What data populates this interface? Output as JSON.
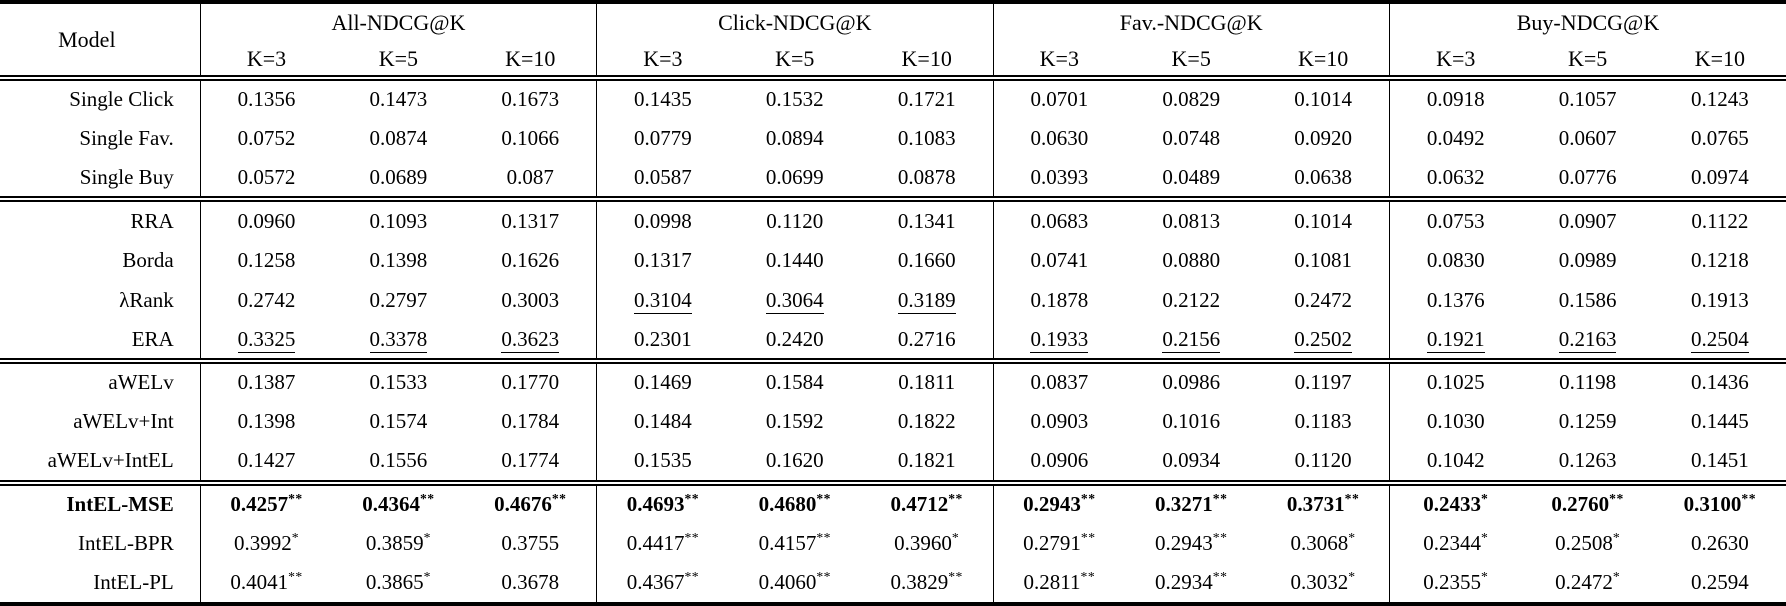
{
  "table": {
    "model_header": "Model",
    "groups": [
      {
        "label": "All-NDCG@K",
        "subcols": [
          "K=3",
          "K=5",
          "K=10"
        ]
      },
      {
        "label": "Click-NDCG@K",
        "subcols": [
          "K=3",
          "K=5",
          "K=10"
        ]
      },
      {
        "label": "Fav.-NDCG@K",
        "subcols": [
          "K=3",
          "K=5",
          "K=10"
        ]
      },
      {
        "label": "Buy-NDCG@K",
        "subcols": [
          "K=3",
          "K=5",
          "K=10"
        ]
      }
    ],
    "blocks": [
      {
        "rows": [
          {
            "model": "Single Click",
            "cells": [
              {
                "v": "0.1356"
              },
              {
                "v": "0.1473"
              },
              {
                "v": "0.1673"
              },
              {
                "v": "0.1435"
              },
              {
                "v": "0.1532"
              },
              {
                "v": "0.1721"
              },
              {
                "v": "0.0701"
              },
              {
                "v": "0.0829"
              },
              {
                "v": "0.1014"
              },
              {
                "v": "0.0918"
              },
              {
                "v": "0.1057"
              },
              {
                "v": "0.1243"
              }
            ]
          },
          {
            "model": "Single Fav.",
            "cells": [
              {
                "v": "0.0752"
              },
              {
                "v": "0.0874"
              },
              {
                "v": "0.1066"
              },
              {
                "v": "0.0779"
              },
              {
                "v": "0.0894"
              },
              {
                "v": "0.1083"
              },
              {
                "v": "0.0630"
              },
              {
                "v": "0.0748"
              },
              {
                "v": "0.0920"
              },
              {
                "v": "0.0492"
              },
              {
                "v": "0.0607"
              },
              {
                "v": "0.0765"
              }
            ]
          },
          {
            "model": "Single Buy",
            "cells": [
              {
                "v": "0.0572"
              },
              {
                "v": "0.0689"
              },
              {
                "v": "0.087"
              },
              {
                "v": "0.0587"
              },
              {
                "v": "0.0699"
              },
              {
                "v": "0.0878"
              },
              {
                "v": "0.0393"
              },
              {
                "v": "0.0489"
              },
              {
                "v": "0.0638"
              },
              {
                "v": "0.0632"
              },
              {
                "v": "0.0776"
              },
              {
                "v": "0.0974"
              }
            ]
          }
        ]
      },
      {
        "rows": [
          {
            "model": "RRA",
            "cells": [
              {
                "v": "0.0960"
              },
              {
                "v": "0.1093"
              },
              {
                "v": "0.1317"
              },
              {
                "v": "0.0998"
              },
              {
                "v": "0.1120"
              },
              {
                "v": "0.1341"
              },
              {
                "v": "0.0683"
              },
              {
                "v": "0.0813"
              },
              {
                "v": "0.1014"
              },
              {
                "v": "0.0753"
              },
              {
                "v": "0.0907"
              },
              {
                "v": "0.1122"
              }
            ]
          },
          {
            "model": "Borda",
            "cells": [
              {
                "v": "0.1258"
              },
              {
                "v": "0.1398"
              },
              {
                "v": "0.1626"
              },
              {
                "v": "0.1317"
              },
              {
                "v": "0.1440"
              },
              {
                "v": "0.1660"
              },
              {
                "v": "0.0741"
              },
              {
                "v": "0.0880"
              },
              {
                "v": "0.1081"
              },
              {
                "v": "0.0830"
              },
              {
                "v": "0.0989"
              },
              {
                "v": "0.1218"
              }
            ]
          },
          {
            "model": "λRank",
            "cells": [
              {
                "v": "0.2742"
              },
              {
                "v": "0.2797"
              },
              {
                "v": "0.3003"
              },
              {
                "v": "0.3104",
                "u": true
              },
              {
                "v": "0.3064",
                "u": true
              },
              {
                "v": "0.3189",
                "u": true
              },
              {
                "v": "0.1878"
              },
              {
                "v": "0.2122"
              },
              {
                "v": "0.2472"
              },
              {
                "v": "0.1376"
              },
              {
                "v": "0.1586"
              },
              {
                "v": "0.1913"
              }
            ]
          },
          {
            "model": "ERA",
            "cells": [
              {
                "v": "0.3325",
                "u": true
              },
              {
                "v": "0.3378",
                "u": true
              },
              {
                "v": "0.3623",
                "u": true
              },
              {
                "v": "0.2301"
              },
              {
                "v": "0.2420"
              },
              {
                "v": "0.2716"
              },
              {
                "v": "0.1933",
                "u": true
              },
              {
                "v": "0.2156",
                "u": true
              },
              {
                "v": "0.2502",
                "u": true
              },
              {
                "v": "0.1921",
                "u": true
              },
              {
                "v": "0.2163",
                "u": true
              },
              {
                "v": "0.2504",
                "u": true
              }
            ]
          }
        ]
      },
      {
        "rows": [
          {
            "model": "aWELv",
            "cells": [
              {
                "v": "0.1387"
              },
              {
                "v": "0.1533"
              },
              {
                "v": "0.1770"
              },
              {
                "v": "0.1469"
              },
              {
                "v": "0.1584"
              },
              {
                "v": "0.1811"
              },
              {
                "v": "0.0837"
              },
              {
                "v": "0.0986"
              },
              {
                "v": "0.1197"
              },
              {
                "v": "0.1025"
              },
              {
                "v": "0.1198"
              },
              {
                "v": "0.1436"
              }
            ]
          },
          {
            "model": "aWELv+Int",
            "cells": [
              {
                "v": "0.1398"
              },
              {
                "v": "0.1574"
              },
              {
                "v": "0.1784"
              },
              {
                "v": "0.1484"
              },
              {
                "v": "0.1592"
              },
              {
                "v": "0.1822"
              },
              {
                "v": "0.0903"
              },
              {
                "v": "0.1016"
              },
              {
                "v": "0.1183"
              },
              {
                "v": "0.1030"
              },
              {
                "v": "0.1259"
              },
              {
                "v": "0.1445"
              }
            ]
          },
          {
            "model": "aWELv+IntEL",
            "cells": [
              {
                "v": "0.1427"
              },
              {
                "v": "0.1556"
              },
              {
                "v": "0.1774"
              },
              {
                "v": "0.1535"
              },
              {
                "v": "0.1620"
              },
              {
                "v": "0.1821"
              },
              {
                "v": "0.0906"
              },
              {
                "v": "0.0934"
              },
              {
                "v": "0.1120"
              },
              {
                "v": "0.1042"
              },
              {
                "v": "0.1263"
              },
              {
                "v": "0.1451"
              }
            ]
          }
        ]
      },
      {
        "rows": [
          {
            "model": "IntEL-MSE",
            "bold": true,
            "cells": [
              {
                "v": "0.4257",
                "s": "**"
              },
              {
                "v": "0.4364",
                "s": "**"
              },
              {
                "v": "0.4676",
                "s": "**"
              },
              {
                "v": "0.4693",
                "s": "**"
              },
              {
                "v": "0.4680",
                "s": "**"
              },
              {
                "v": "0.4712",
                "s": "**"
              },
              {
                "v": "0.2943",
                "s": "**"
              },
              {
                "v": "0.3271",
                "s": "**"
              },
              {
                "v": "0.3731",
                "s": "**"
              },
              {
                "v": "0.2433",
                "s": "*"
              },
              {
                "v": "0.2760",
                "s": "**"
              },
              {
                "v": "0.3100",
                "s": "**"
              }
            ]
          },
          {
            "model": "IntEL-BPR",
            "cells": [
              {
                "v": "0.3992",
                "s": "*"
              },
              {
                "v": "0.3859",
                "s": "*"
              },
              {
                "v": "0.3755"
              },
              {
                "v": "0.4417",
                "s": "**"
              },
              {
                "v": "0.4157",
                "s": "**"
              },
              {
                "v": "0.3960",
                "s": "*"
              },
              {
                "v": "0.2791",
                "s": "**"
              },
              {
                "v": "0.2943",
                "s": "**"
              },
              {
                "v": "0.3068",
                "s": "*"
              },
              {
                "v": "0.2344",
                "s": "*"
              },
              {
                "v": "0.2508",
                "s": "*"
              },
              {
                "v": "0.2630"
              }
            ]
          },
          {
            "model": "IntEL-PL",
            "cells": [
              {
                "v": "0.4041",
                "s": "**"
              },
              {
                "v": "0.3865",
                "s": "*"
              },
              {
                "v": "0.3678"
              },
              {
                "v": "0.4367",
                "s": "**"
              },
              {
                "v": "0.4060",
                "s": "**"
              },
              {
                "v": "0.3829",
                "s": "**"
              },
              {
                "v": "0.2811",
                "s": "**"
              },
              {
                "v": "0.2934",
                "s": "**"
              },
              {
                "v": "0.3032",
                "s": "*"
              },
              {
                "v": "0.2355",
                "s": "*"
              },
              {
                "v": "0.2472",
                "s": "*"
              },
              {
                "v": "0.2594"
              }
            ]
          }
        ]
      }
    ]
  }
}
